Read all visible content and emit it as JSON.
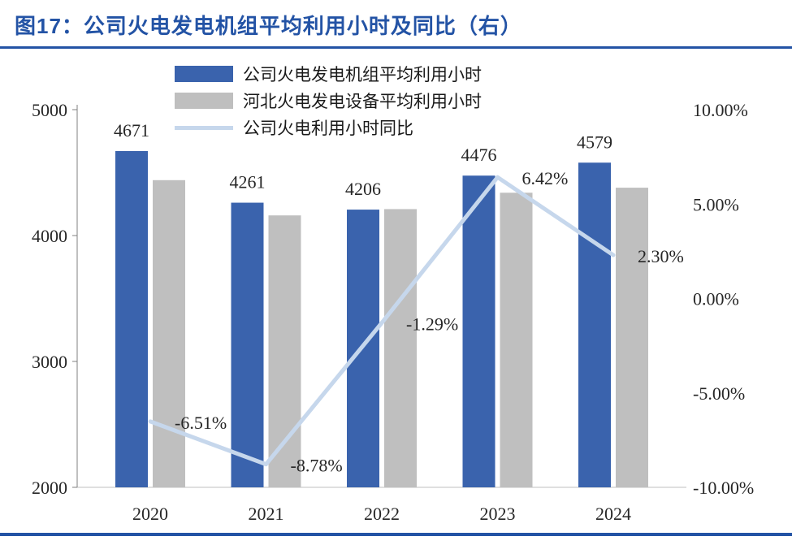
{
  "page": {
    "title": "图17：公司火电发电机组平均利用小时及同比（右）",
    "accent_color": "#2353A5"
  },
  "chart_data": {
    "type": "bar+line",
    "categories": [
      "2020",
      "2021",
      "2022",
      "2023",
      "2024"
    ],
    "series": [
      {
        "name": "公司火电发电机组平均利用小时",
        "type": "bar",
        "color": "#3A63AD",
        "values": [
          4671,
          4261,
          4206,
          4476,
          4579
        ],
        "labels": [
          "4671",
          "4261",
          "4206",
          "4476",
          "4579"
        ]
      },
      {
        "name": "河北火电发电设备平均利用小时",
        "type": "bar",
        "color": "#BFBFBF",
        "values": [
          4440,
          4160,
          4210,
          4340,
          4380
        ]
      },
      {
        "name": "公司火电利用小时同比",
        "type": "line",
        "color": "#C6D7EC",
        "values": [
          -6.51,
          -8.78,
          -1.29,
          6.42,
          2.3
        ],
        "labels": [
          "-6.51%",
          "-8.78%",
          "-1.29%",
          "6.42%",
          "2.30%"
        ]
      }
    ],
    "left_axis": {
      "min": 2000,
      "max": 5000,
      "tick_labels": [
        "5000",
        "4000",
        "3000",
        "2000"
      ],
      "tick_values": [
        5000,
        4000,
        3000,
        2000
      ]
    },
    "right_axis": {
      "min": -10,
      "max": 10,
      "tick_labels": [
        "10.00%",
        "5.00%",
        "0.00%",
        "-5.00%",
        "-10.00%"
      ],
      "tick_values": [
        10,
        5,
        0,
        -5,
        -10
      ]
    },
    "legend_position": "top",
    "grid": "off"
  }
}
